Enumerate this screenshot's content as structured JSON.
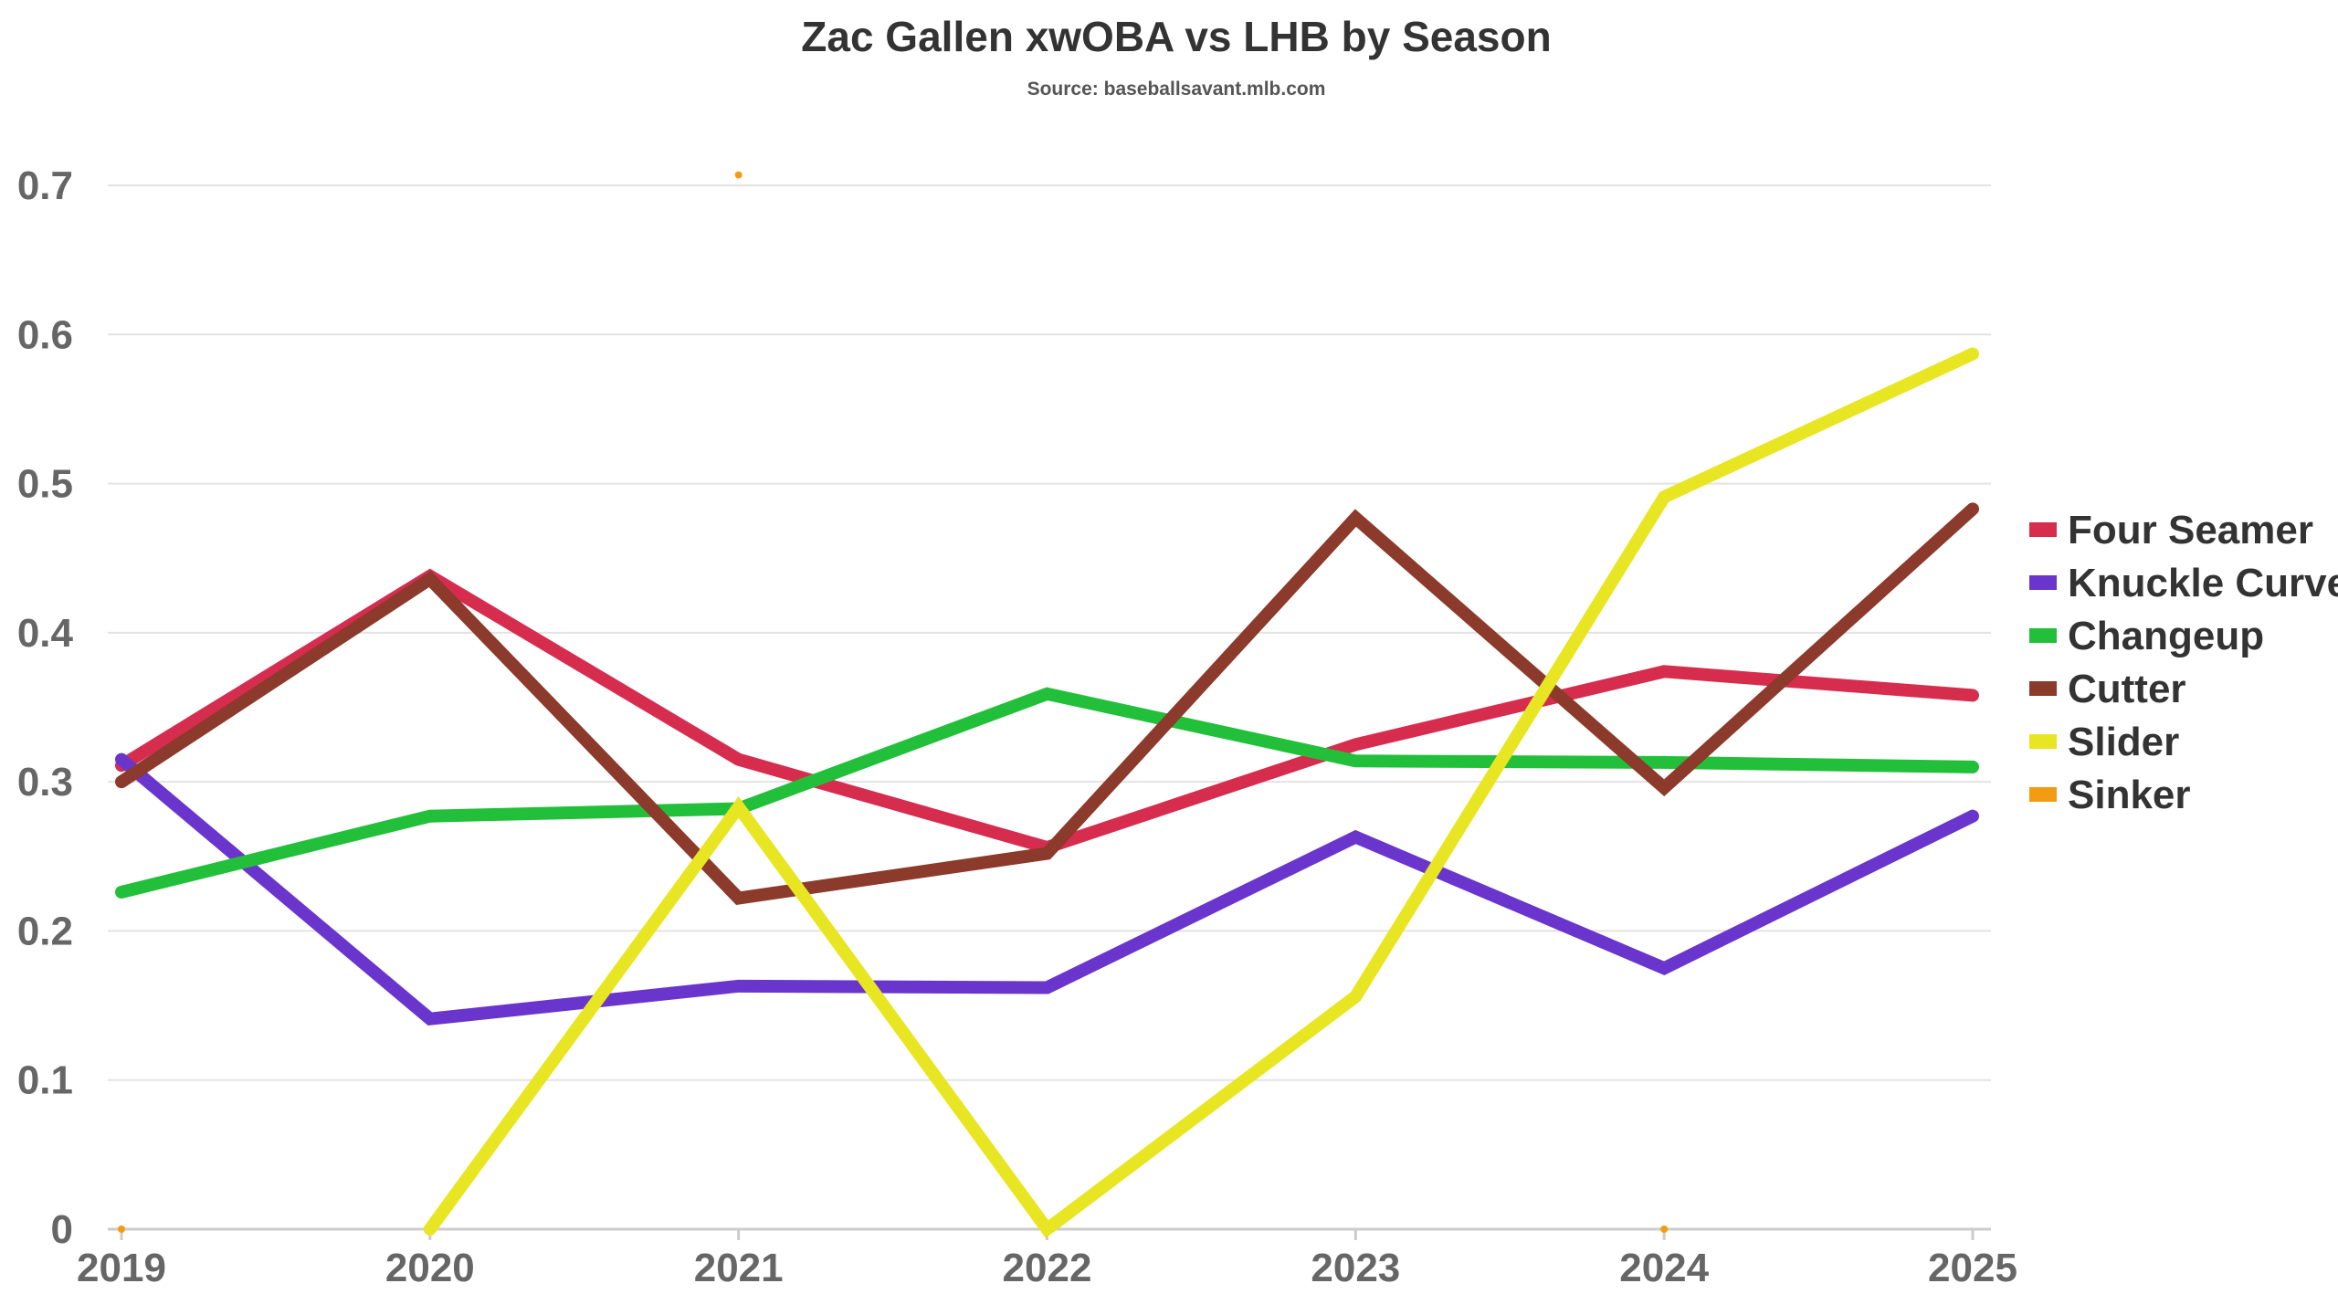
{
  "chart_data": {
    "type": "line",
    "title": "Zac Gallen xwOBA vs LHB by Season",
    "subtitle": "Source: baseballsavant.mlb.com",
    "xlabel": "",
    "ylabel": "",
    "x": [
      "2019",
      "2020",
      "2021",
      "2022",
      "2023",
      "2024",
      "2025"
    ],
    "ylim": [
      0,
      0.7
    ],
    "y_ticks": [
      "0",
      "0.1",
      "0.2",
      "0.3",
      "0.4",
      "0.5",
      "0.6",
      "0.7"
    ],
    "grid": true,
    "legend_position": "right",
    "series": [
      {
        "name": "Four Seamer",
        "color": "#d62d4f",
        "values": [
          0.311,
          0.438,
          0.315,
          0.256,
          0.325,
          0.374,
          0.358
        ]
      },
      {
        "name": "Knuckle Curve",
        "color": "#6a35cc",
        "values": [
          0.315,
          0.141,
          0.163,
          0.162,
          0.263,
          0.175,
          0.277
        ]
      },
      {
        "name": "Changeup",
        "color": "#22c03a",
        "values": [
          0.226,
          0.277,
          0.282,
          0.359,
          0.314,
          0.313,
          0.31
        ]
      },
      {
        "name": "Cutter",
        "color": "#8b3a2b",
        "values": [
          0.3,
          0.436,
          0.222,
          0.252,
          0.477,
          0.296,
          0.483
        ]
      },
      {
        "name": "Slider",
        "color": "#e8e622",
        "values": [
          null,
          0.0,
          0.283,
          0.0,
          0.156,
          0.491,
          0.587
        ]
      },
      {
        "name": "Sinker",
        "color": "#f39c12",
        "values": [
          0.0,
          null,
          0.707,
          null,
          null,
          0.0,
          null
        ]
      }
    ]
  }
}
